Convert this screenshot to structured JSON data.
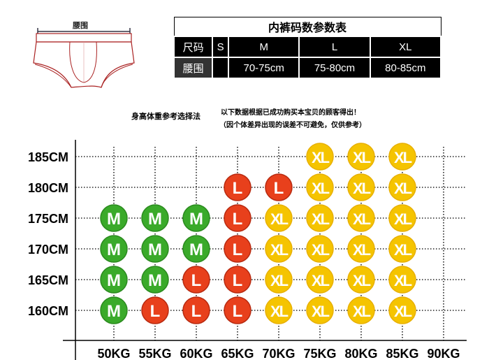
{
  "diagram": {
    "waist_label": "腰围"
  },
  "size_table": {
    "title": "内裤码数参数表",
    "header": [
      "尺码",
      "S",
      "M",
      "L",
      "XL"
    ],
    "row": [
      "腰围",
      "",
      "70-75cm",
      "75-80cm",
      "80-85cm"
    ]
  },
  "guide": {
    "heading": "身高体重参考选择法",
    "note_line1": "以下数据根据已成功购买本宝贝的顾客得出！",
    "note_line2": "（因个体差异出现的误差不可避免，仅供参考）"
  },
  "chart_data": {
    "type": "table",
    "x_unit": "KG",
    "y_unit": "CM",
    "x": [
      50,
      55,
      60,
      65,
      70,
      75,
      80,
      85,
      90
    ],
    "y": [
      185,
      180,
      175,
      170,
      165,
      160
    ],
    "x_labels": [
      "50KG",
      "55KG",
      "60KG",
      "65KG",
      "70KG",
      "75KG",
      "80KG",
      "85KG",
      "90KG"
    ],
    "y_labels": [
      "185CM",
      "180CM",
      "175CM",
      "170CM",
      "165CM",
      "160CM"
    ],
    "cells": [
      [
        "",
        "",
        "",
        "",
        "",
        "XL",
        "XL",
        "XL",
        ""
      ],
      [
        "",
        "",
        "",
        "L",
        "L",
        "XL",
        "XL",
        "XL",
        ""
      ],
      [
        "M",
        "M",
        "M",
        "L",
        "XL",
        "XL",
        "XL",
        "XL",
        ""
      ],
      [
        "M",
        "M",
        "M",
        "L",
        "XL",
        "XL",
        "XL",
        "XL",
        ""
      ],
      [
        "M",
        "M",
        "L",
        "L",
        "XL",
        "XL",
        "XL",
        "XL",
        ""
      ],
      [
        "M",
        "L",
        "L",
        "L",
        "XL",
        "XL",
        "XL",
        "XL",
        ""
      ]
    ],
    "colors": {
      "M": "#3aaa2a",
      "L": "#e8401c",
      "XL": "#f5c400"
    },
    "grid": "dotted"
  }
}
